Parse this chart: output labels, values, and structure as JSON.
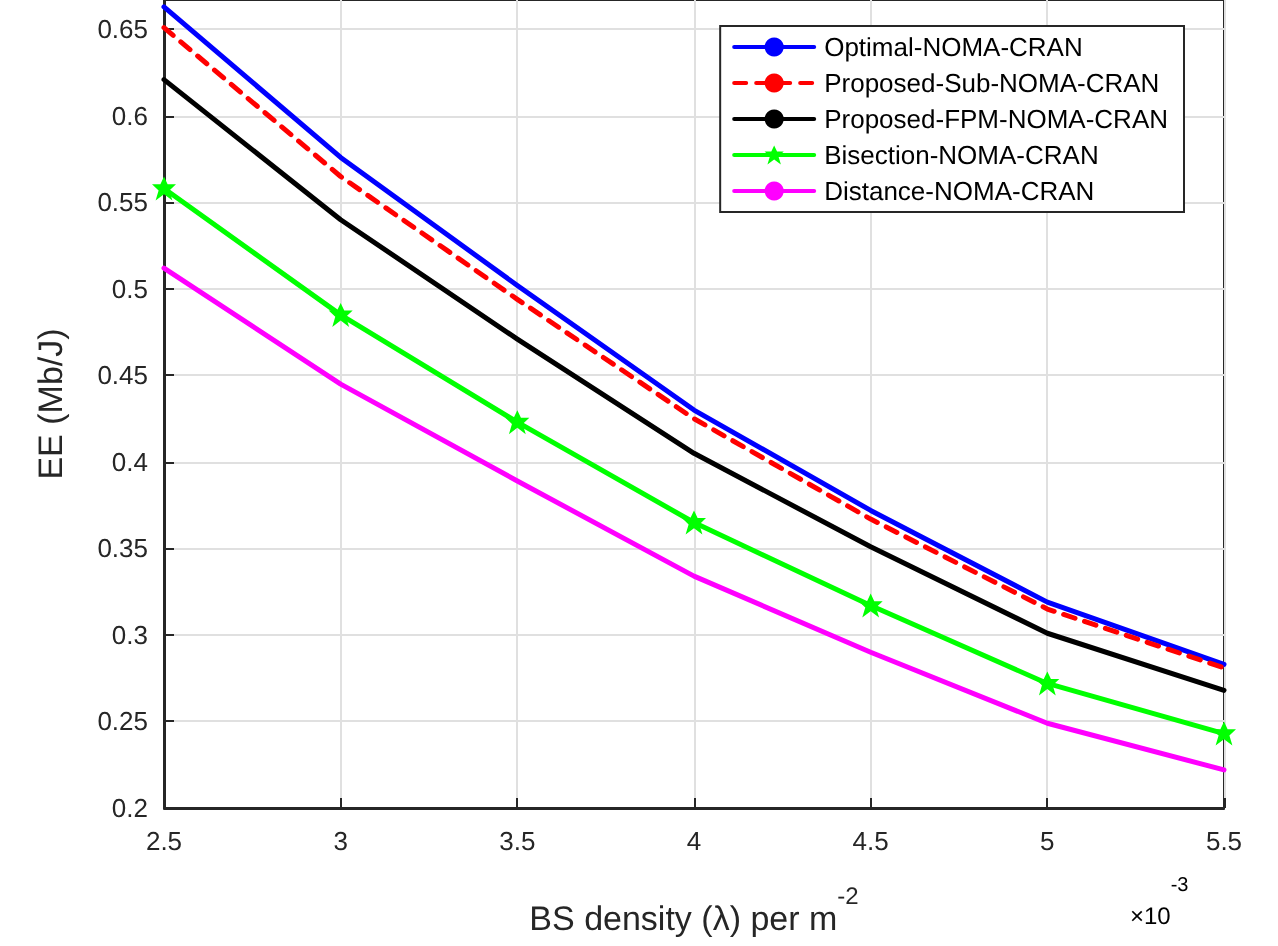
{
  "chart_data": {
    "type": "line",
    "xlabel": "BS density (λ) per m$^{-2}$",
    "ylabel": "EE (Mb/J)",
    "annotations": [
      "×10$^{-3}$"
    ],
    "x": [
      2.5,
      3,
      3.5,
      4,
      4.5,
      5,
      5.5
    ],
    "series": [
      {
        "name": "Optimal-NOMA-CRAN",
        "color": "#0000ff",
        "line_style": "solid",
        "marker": "none",
        "values": [
          0.663,
          0.576,
          0.502,
          0.43,
          0.372,
          0.319,
          0.283
        ]
      },
      {
        "name": "Proposed-Sub-NOMA-CRAN",
        "color": "#ff0000",
        "line_style": "dashed",
        "marker": "none",
        "values": [
          0.651,
          0.565,
          0.494,
          0.425,
          0.367,
          0.315,
          0.281
        ]
      },
      {
        "name": "Proposed-FPM-NOMA-CRAN",
        "color": "#000000",
        "line_style": "solid",
        "marker": "none",
        "values": [
          0.621,
          0.54,
          0.471,
          0.405,
          0.351,
          0.301,
          0.268
        ]
      },
      {
        "name": "Bisection-NOMA-CRAN",
        "color": "#00ff00",
        "line_style": "solid",
        "marker": "star",
        "values": [
          0.558,
          0.485,
          0.423,
          0.365,
          0.317,
          0.272,
          0.243
        ]
      },
      {
        "name": "Distance-NOMA-CRAN",
        "color": "#ff00ff",
        "line_style": "solid",
        "marker": "none",
        "values": [
          0.512,
          0.445,
          0.389,
          0.334,
          0.29,
          0.249,
          0.222
        ]
      }
    ],
    "xlim": [
      2.5,
      5.5
    ],
    "xticks": [
      2.5,
      3,
      3.5,
      4,
      4.5,
      5,
      5.5
    ],
    "ylim": [
      0.2,
      0.667
    ],
    "yticks": [
      0.2,
      0.25,
      0.3,
      0.35,
      0.4,
      0.45,
      0.5,
      0.55,
      0.6,
      0.65
    ],
    "grid": true,
    "legend": "top right"
  }
}
